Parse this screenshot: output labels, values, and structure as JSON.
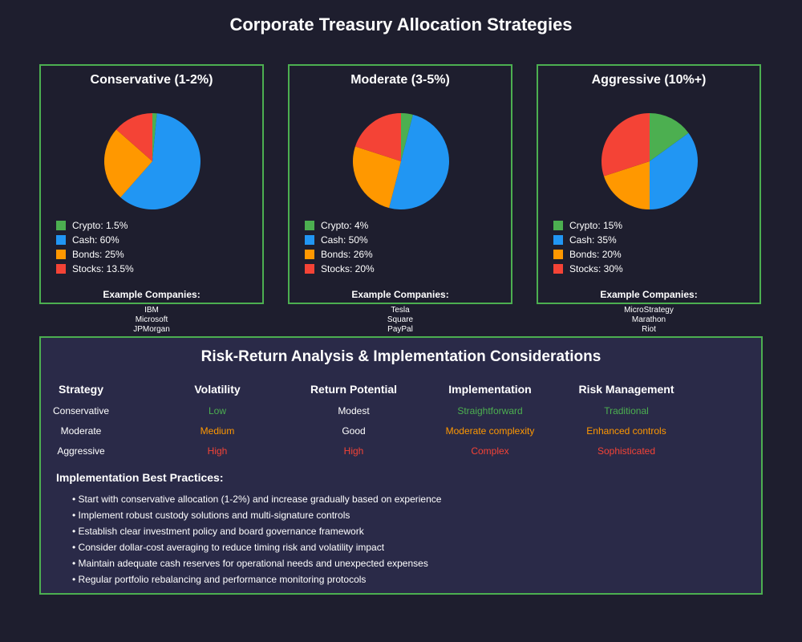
{
  "title": "Corporate Treasury Allocation Strategies",
  "colors": {
    "Crypto": "#4caf50",
    "Cash": "#2196f3",
    "Bonds": "#ff9800",
    "Stocks": "#f44336"
  },
  "level_colors": {
    "low": "#4caf50",
    "mid": "#ff9800",
    "high": "#f44336",
    "neutral": "#ffffff"
  },
  "examples_label": "Example Companies:",
  "chart_data": [
    {
      "type": "pie",
      "title": "Conservative (1-2%)",
      "slices": [
        {
          "label": "Crypto",
          "value": 1.5,
          "legend": "Crypto: 1.5%"
        },
        {
          "label": "Cash",
          "value": 60,
          "legend": "Cash: 60%"
        },
        {
          "label": "Bonds",
          "value": 25,
          "legend": "Bonds: 25%"
        },
        {
          "label": "Stocks",
          "value": 13.5,
          "legend": "Stocks: 13.5%"
        }
      ],
      "companies": [
        "IBM",
        "Microsoft",
        "JPMorgan"
      ]
    },
    {
      "type": "pie",
      "title": "Moderate (3-5%)",
      "slices": [
        {
          "label": "Crypto",
          "value": 4,
          "legend": "Crypto: 4%"
        },
        {
          "label": "Cash",
          "value": 50,
          "legend": "Cash: 50%"
        },
        {
          "label": "Bonds",
          "value": 26,
          "legend": "Bonds: 26%"
        },
        {
          "label": "Stocks",
          "value": 20,
          "legend": "Stocks: 20%"
        }
      ],
      "companies": [
        "Tesla",
        "Square",
        "PayPal"
      ]
    },
    {
      "type": "pie",
      "title": "Aggressive (10%+)",
      "slices": [
        {
          "label": "Crypto",
          "value": 15,
          "legend": "Crypto: 15%"
        },
        {
          "label": "Cash",
          "value": 35,
          "legend": "Cash: 35%"
        },
        {
          "label": "Bonds",
          "value": 20,
          "legend": "Bonds: 20%"
        },
        {
          "label": "Stocks",
          "value": 30,
          "legend": "Stocks: 30%"
        }
      ],
      "companies": [
        "MicroStrategy",
        "Marathon",
        "Riot"
      ]
    }
  ],
  "analysis": {
    "title": "Risk-Return Analysis & Implementation Considerations",
    "headers": [
      "Strategy",
      "Volatility",
      "Return Potential",
      "Implementation",
      "Risk Management"
    ],
    "rows": [
      [
        {
          "text": "Conservative",
          "level": "neutral"
        },
        {
          "text": "Low",
          "level": "low"
        },
        {
          "text": "Modest",
          "level": "neutral"
        },
        {
          "text": "Straightforward",
          "level": "low"
        },
        {
          "text": "Traditional",
          "level": "low"
        }
      ],
      [
        {
          "text": "Moderate",
          "level": "neutral"
        },
        {
          "text": "Medium",
          "level": "mid"
        },
        {
          "text": "Good",
          "level": "neutral"
        },
        {
          "text": "Moderate complexity",
          "level": "mid"
        },
        {
          "text": "Enhanced controls",
          "level": "mid"
        }
      ],
      [
        {
          "text": "Aggressive",
          "level": "neutral"
        },
        {
          "text": "High",
          "level": "high"
        },
        {
          "text": "High",
          "level": "high"
        },
        {
          "text": "Complex",
          "level": "high"
        },
        {
          "text": "Sophisticated",
          "level": "high"
        }
      ]
    ],
    "practices_title": "Implementation Best Practices:",
    "practices": [
      "• Start with conservative allocation (1-2%) and increase gradually based on experience",
      "• Implement robust custody solutions and multi-signature controls",
      "• Establish clear investment policy and board governance framework",
      "• Consider dollar-cost averaging to reduce timing risk and volatility impact",
      "• Maintain adequate cash reserves for operational needs and unexpected expenses",
      "• Regular portfolio rebalancing and performance monitoring protocols"
    ]
  }
}
